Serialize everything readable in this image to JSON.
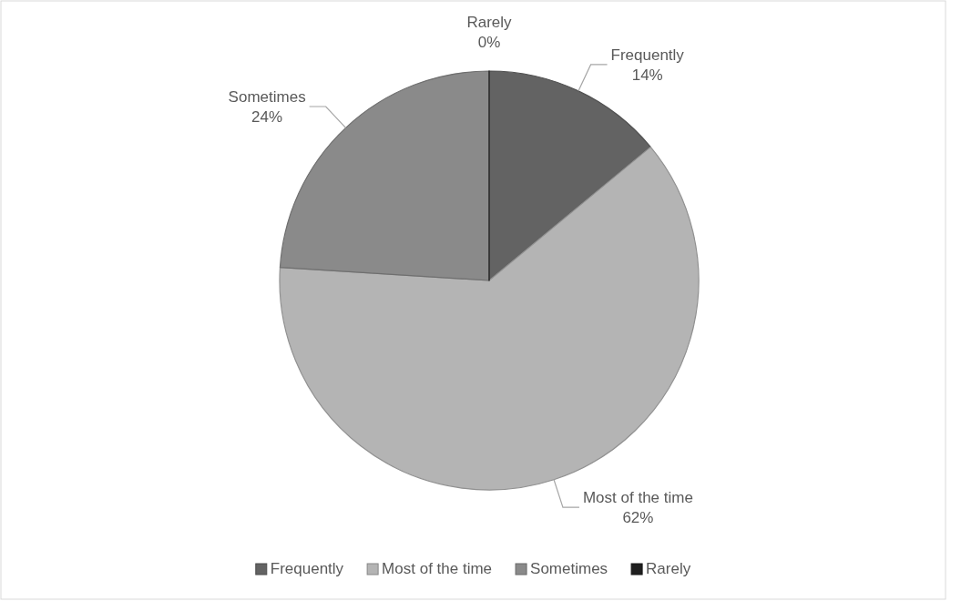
{
  "chart_data": {
    "type": "pie",
    "categories": [
      "Frequently",
      "Most of the time",
      "Sometimes",
      "Rarely"
    ],
    "values": [
      14,
      62,
      24,
      0
    ],
    "colors": [
      "#636363",
      "#b4b4b4",
      "#8a8a8a",
      "#1f1f1f"
    ],
    "value_labels": [
      "14%",
      "62%",
      "24%",
      "0%"
    ],
    "legend": "bottom"
  }
}
